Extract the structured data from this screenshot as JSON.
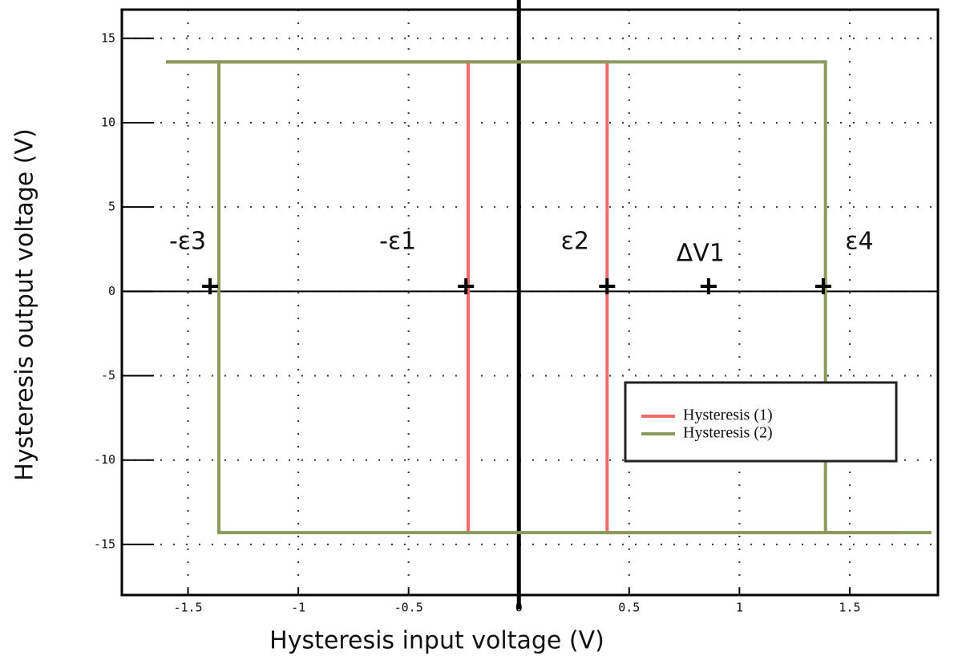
{
  "chart_data": {
    "type": "line",
    "x_label": "Hysteresis input voltage (V)",
    "y_label": "Hysteresis output voltage (V)",
    "xlim": [
      -1.8,
      1.9
    ],
    "ylim": [
      -18,
      16.7
    ],
    "xticks": [
      -1.5,
      -1,
      -0.5,
      0,
      0.5,
      1,
      1.5
    ],
    "yticks": [
      15,
      10,
      5,
      0,
      -5,
      -10,
      -15
    ],
    "grid": true,
    "legend_position": "lower right",
    "series": [
      {
        "name": "Hysteresis (1)",
        "color": "#f26b6b",
        "x": [
          -1.6,
          0.4,
          0.4,
          1.73,
          null,
          -0.23,
          -0.23
        ],
        "values": [
          13.6,
          13.6,
          -14.3,
          -14.3,
          null,
          -14.3,
          13.6
        ]
      },
      {
        "name": "Hysteresis (2)",
        "color": "#8a9a5b",
        "x": [
          -1.6,
          1.39,
          1.39,
          null,
          -1.36,
          -1.36,
          1.87
        ],
        "values": [
          13.6,
          13.6,
          -14.3,
          null,
          13.6,
          -14.3,
          -14.3
        ]
      }
    ],
    "markers": {
      "labels": [
        "-ε3",
        "-ε1",
        "ε2",
        "ΔV1",
        "ε4"
      ],
      "x": [
        -1.4,
        -0.24,
        0.4,
        0.86,
        1.38
      ],
      "y": [
        0.3,
        0.3,
        0.3,
        0.3,
        0.3
      ]
    }
  }
}
